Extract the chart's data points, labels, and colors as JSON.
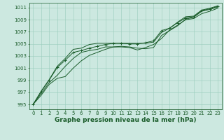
{
  "bg_color": "#cce8e0",
  "grid_color": "#99ccbb",
  "line_color": "#1a5c2a",
  "xlabel": "Graphe pression niveau de la mer (hPa)",
  "xlabel_fontsize": 6.5,
  "ylabel_ticks": [
    995,
    997,
    999,
    1001,
    1003,
    1005,
    1007,
    1009,
    1011
  ],
  "xticks": [
    0,
    1,
    2,
    3,
    4,
    5,
    6,
    7,
    8,
    9,
    10,
    11,
    12,
    13,
    14,
    15,
    16,
    17,
    18,
    19,
    20,
    21,
    22,
    23
  ],
  "xlim": [
    -0.5,
    23.5
  ],
  "ylim": [
    994.2,
    1011.8
  ],
  "series": [
    [
      995.0,
      996.5,
      998.3,
      999.3,
      999.6,
      1001.0,
      1002.2,
      1003.1,
      1003.6,
      1004.1,
      1004.5,
      1004.5,
      1004.4,
      1004.0,
      1004.4,
      1004.9,
      1005.9,
      1007.3,
      1008.1,
      1009.0,
      1009.2,
      1010.0,
      1010.4,
      1010.9
    ],
    [
      995.0,
      996.8,
      998.6,
      999.8,
      1001.3,
      1002.6,
      1003.6,
      1003.9,
      1004.1,
      1004.5,
      1004.5,
      1004.6,
      1004.5,
      1004.3,
      1004.2,
      1004.4,
      1006.4,
      1007.2,
      1008.0,
      1009.1,
      1009.4,
      1010.4,
      1010.7,
      1011.1
    ],
    [
      995.0,
      997.1,
      999.0,
      1001.1,
      1002.3,
      1003.6,
      1003.9,
      1004.3,
      1004.6,
      1004.9,
      1005.1,
      1005.1,
      1005.0,
      1005.0,
      1005.2,
      1005.5,
      1007.2,
      1007.6,
      1008.5,
      1009.3,
      1009.5,
      1010.5,
      1010.8,
      1011.2
    ],
    [
      995.0,
      997.2,
      999.1,
      1001.3,
      1002.6,
      1004.1,
      1004.3,
      1004.9,
      1005.1,
      1005.1,
      1005.1,
      1005.1,
      1005.1,
      1005.1,
      1005.1,
      1005.3,
      1006.9,
      1007.6,
      1008.6,
      1009.5,
      1009.6,
      1010.6,
      1010.9,
      1011.3
    ]
  ],
  "marker_series": 2,
  "tick_fontsize": 5.0,
  "linewidth": 0.7,
  "markersize": 2.5,
  "markeredgewidth": 0.7
}
